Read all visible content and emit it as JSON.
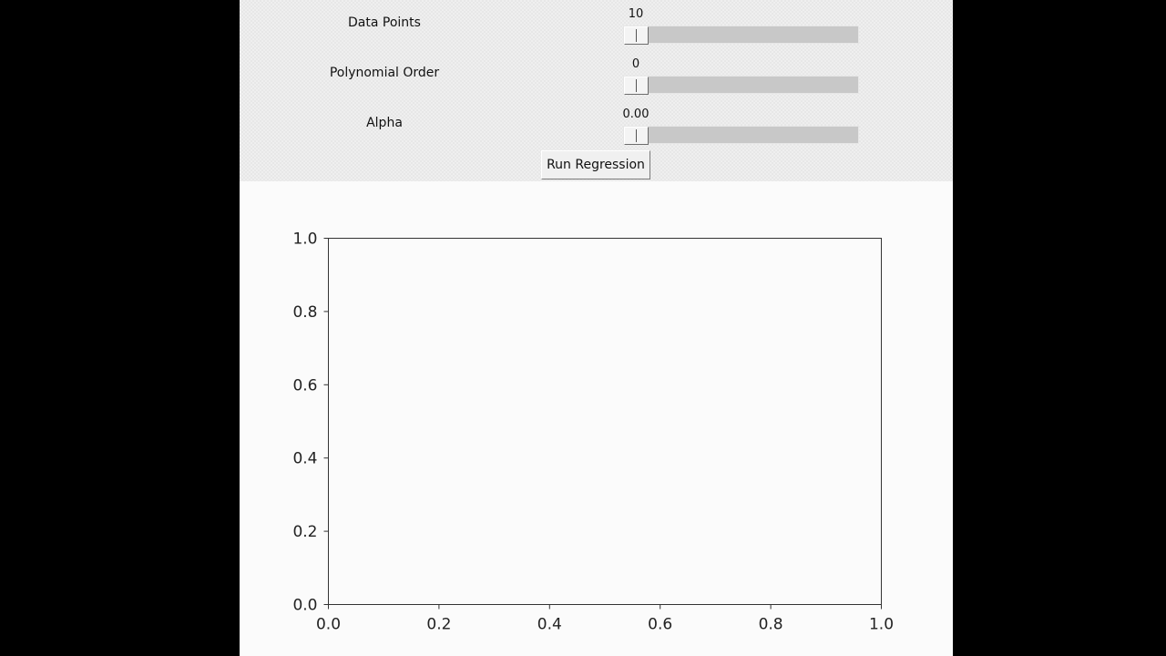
{
  "controls": {
    "data_points": {
      "label": "Data Points",
      "value": "10"
    },
    "polynomial_order": {
      "label": "Polynomial Order",
      "value": "0"
    },
    "alpha": {
      "label": "Alpha",
      "value": "0.00"
    },
    "run_button_label": "Run Regression"
  },
  "chart_data": {
    "type": "scatter",
    "title": "",
    "xlabel": "",
    "ylabel": "",
    "xlim": [
      0.0,
      1.0
    ],
    "ylim": [
      0.0,
      1.0
    ],
    "x_ticks": [
      "0.0",
      "0.2",
      "0.4",
      "0.6",
      "0.8",
      "1.0"
    ],
    "y_ticks": [
      "0.0",
      "0.2",
      "0.4",
      "0.6",
      "0.8",
      "1.0"
    ],
    "series": [],
    "grid": false
  }
}
